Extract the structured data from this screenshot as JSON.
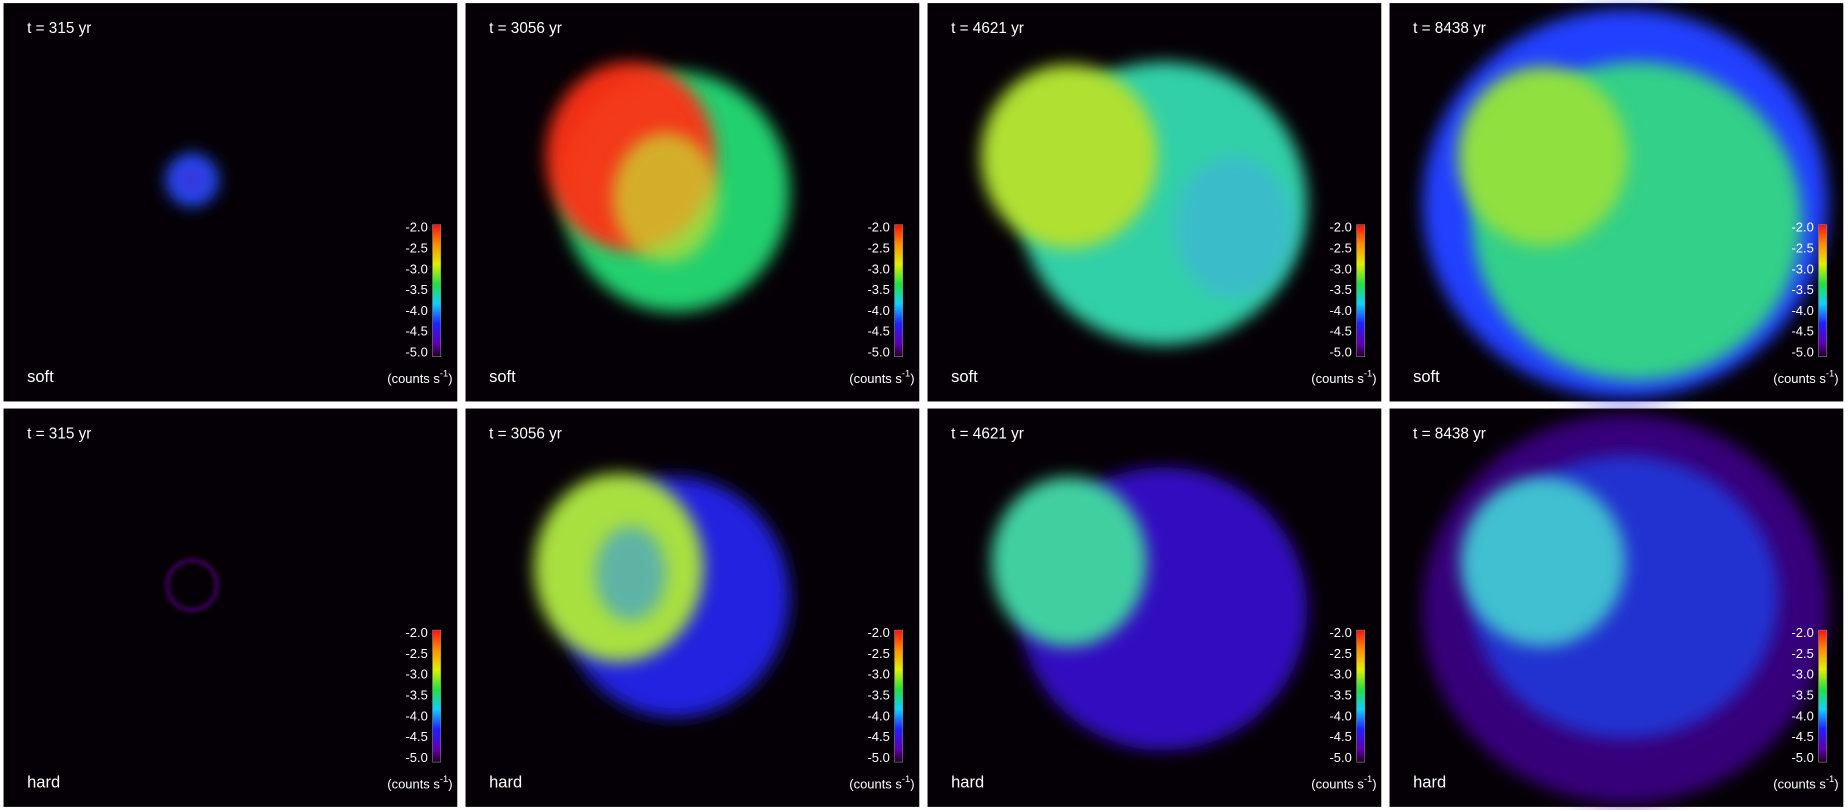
{
  "columns": [
    {
      "time": "t = 315 yr"
    },
    {
      "time": "t = 3056 yr"
    },
    {
      "time": "t = 4621 yr"
    },
    {
      "time": "t = 8438 yr"
    }
  ],
  "rows": [
    {
      "band": "soft"
    },
    {
      "band": "hard"
    }
  ],
  "colorbar": {
    "ticks": [
      "-2.0",
      "-2.5",
      "-3.0",
      "-3.5",
      "-4.0",
      "-4.5",
      "-5.0"
    ],
    "unit_prefix": "(counts s",
    "unit_exponent": "-1",
    "unit_suffix": ")"
  }
}
